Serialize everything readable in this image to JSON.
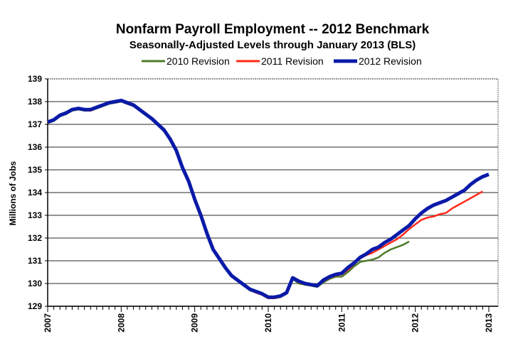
{
  "chart_data": {
    "type": "line",
    "title": "Nonfarm Payroll Employment -- 2012 Benchmark",
    "subtitle": "Seasonally-Adjusted Levels through January 2013 (BLS)",
    "xlabel": "",
    "ylabel": "Millions of Jobs",
    "xlim": [
      2007,
      2013
    ],
    "ylim": [
      129,
      139
    ],
    "x_ticks": [
      "2007",
      "2008",
      "2009",
      "2010",
      "2011",
      "2012",
      "2013"
    ],
    "y_ticks": [
      "129",
      "130",
      "131",
      "132",
      "133",
      "134",
      "135",
      "136",
      "137",
      "138",
      "139"
    ],
    "grid": true,
    "legend_position": "top",
    "frequency": "monthly",
    "series": [
      {
        "name": "2010 Revision",
        "color": "#4f7a28",
        "start": 2007,
        "values": [
          137.05,
          137.15,
          137.35,
          137.45,
          137.6,
          137.65,
          137.6,
          137.6,
          137.7,
          137.8,
          137.9,
          137.95,
          138.0,
          137.9,
          137.8,
          137.6,
          137.4,
          137.2,
          136.95,
          136.7,
          136.3,
          135.8,
          135.05,
          134.45,
          133.65,
          132.95,
          132.15,
          131.45,
          131.05,
          130.65,
          130.3,
          130.1,
          129.9,
          129.7,
          129.6,
          129.5,
          129.35,
          129.35,
          129.4,
          129.55,
          130.2,
          130.0,
          129.95,
          129.9,
          129.85,
          130.05,
          130.2,
          130.3,
          130.3,
          130.5,
          130.75,
          130.95,
          131.0,
          131.05,
          131.15,
          131.35,
          131.5,
          131.6,
          131.7,
          131.85
        ]
      },
      {
        "name": "2011 Revision",
        "color": "#ff2a1a",
        "start": 2007,
        "values": [
          137.1,
          137.2,
          137.4,
          137.5,
          137.65,
          137.7,
          137.62,
          137.6,
          137.72,
          137.82,
          137.92,
          137.98,
          138.02,
          137.92,
          137.82,
          137.62,
          137.42,
          137.22,
          136.97,
          136.72,
          136.32,
          135.82,
          135.08,
          134.48,
          133.68,
          132.98,
          132.18,
          131.48,
          131.08,
          130.68,
          130.33,
          130.12,
          129.92,
          129.72,
          129.6,
          129.5,
          129.35,
          129.35,
          129.42,
          129.58,
          130.22,
          130.05,
          129.97,
          129.92,
          129.88,
          130.1,
          130.25,
          130.35,
          130.4,
          130.6,
          130.85,
          131.1,
          131.25,
          131.35,
          131.5,
          131.65,
          131.8,
          131.95,
          132.15,
          132.4,
          132.6,
          132.8,
          132.9,
          132.95,
          133.05,
          133.1,
          133.3,
          133.45,
          133.6,
          133.75,
          133.9,
          134.05
        ]
      },
      {
        "name": "2012 Revision",
        "color": "#0a1aa8",
        "start": 2007,
        "values": [
          137.1,
          137.2,
          137.4,
          137.5,
          137.65,
          137.7,
          137.65,
          137.65,
          137.75,
          137.85,
          137.95,
          138.0,
          138.05,
          137.95,
          137.85,
          137.65,
          137.45,
          137.25,
          137.0,
          136.75,
          136.35,
          135.85,
          135.1,
          134.5,
          133.7,
          133.0,
          132.2,
          131.5,
          131.1,
          130.7,
          130.35,
          130.15,
          129.95,
          129.75,
          129.65,
          129.55,
          129.4,
          129.4,
          129.45,
          129.6,
          130.25,
          130.1,
          130.0,
          129.95,
          129.9,
          130.15,
          130.3,
          130.4,
          130.45,
          130.7,
          130.9,
          131.15,
          131.3,
          131.5,
          131.6,
          131.8,
          131.95,
          132.15,
          132.35,
          132.55,
          132.85,
          133.1,
          133.3,
          133.45,
          133.55,
          133.65,
          133.8,
          133.95,
          134.1,
          134.35,
          134.55,
          134.7,
          134.8
        ]
      }
    ]
  }
}
